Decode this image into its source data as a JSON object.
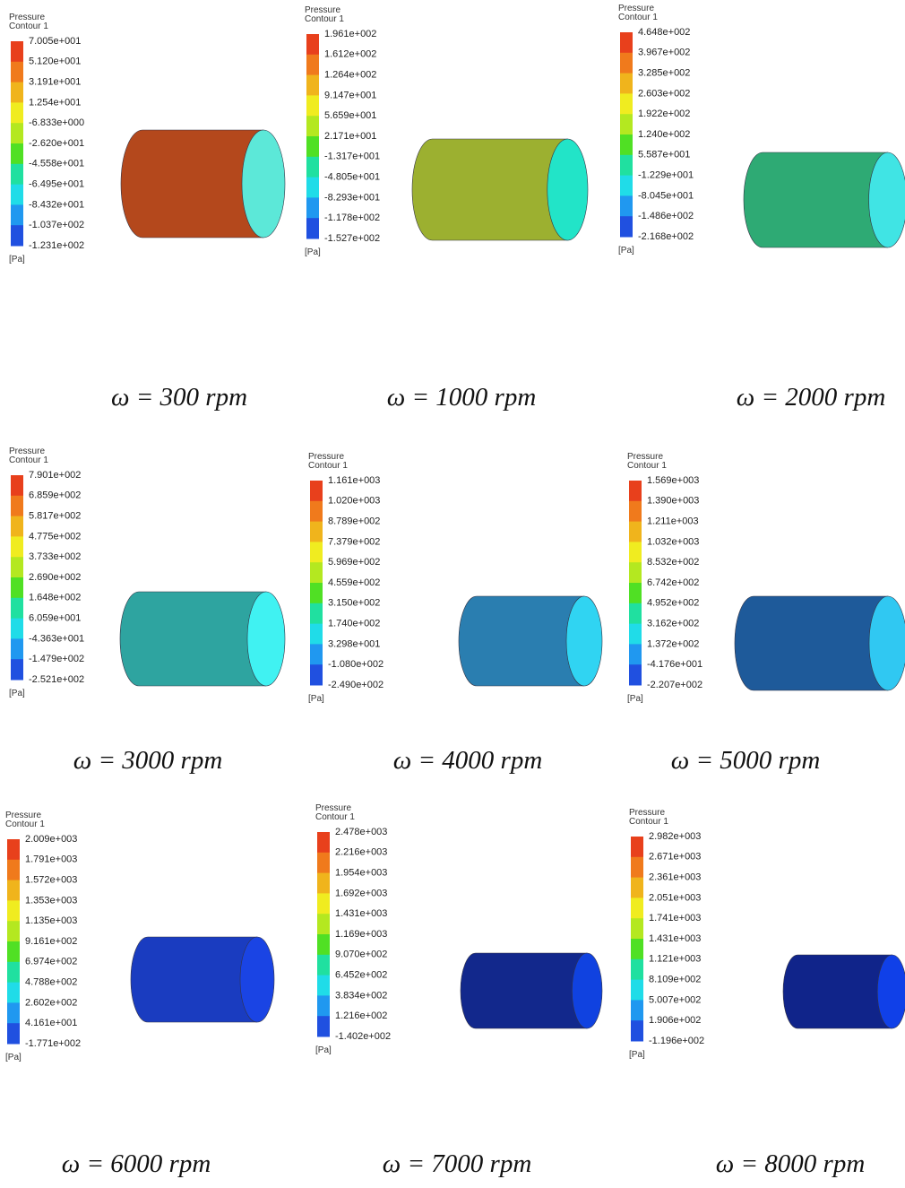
{
  "panels": [
    {
      "legend": {
        "title": "Pressure",
        "subtitle": "Contour 1",
        "levels": [
          "7.005e+001",
          "5.120e+001",
          "3.191e+001",
          "1.254e+001",
          "-6.833e+000",
          "-2.620e+001",
          "-4.558e+001",
          "-6.495e+001",
          "-8.432e+001",
          "-1.037e+002",
          "-1.231e+002"
        ],
        "unit": "[Pa]"
      },
      "caption": "ω = 300 rpm"
    },
    {
      "legend": {
        "title": "Pressure",
        "subtitle": "Contour 1",
        "levels": [
          "1.961e+002",
          "1.612e+002",
          "1.264e+002",
          "9.147e+001",
          "5.659e+001",
          "2.171e+001",
          "-1.317e+001",
          "-4.805e+001",
          "-8.293e+001",
          "-1.178e+002",
          "-1.527e+002"
        ],
        "unit": "[Pa]"
      },
      "caption": "ω = 1000 rpm"
    },
    {
      "legend": {
        "title": "Pressure",
        "subtitle": "Contour 1",
        "levels": [
          "4.648e+002",
          "3.967e+002",
          "3.285e+002",
          "2.603e+002",
          "1.922e+002",
          "1.240e+002",
          "5.587e+001",
          "-1.229e+001",
          "-8.045e+001",
          "-1.486e+002",
          "-2.168e+002"
        ],
        "unit": "[Pa]"
      },
      "caption": "ω = 2000 rpm"
    },
    {
      "legend": {
        "title": "Pressure",
        "subtitle": "Contour 1",
        "levels": [
          "7.901e+002",
          "6.859e+002",
          "5.817e+002",
          "4.775e+002",
          "3.733e+002",
          "2.690e+002",
          "1.648e+002",
          "6.059e+001",
          "-4.363e+001",
          "-1.479e+002",
          "-2.521e+002"
        ],
        "unit": "[Pa]"
      },
      "caption": "ω = 3000 rpm"
    },
    {
      "legend": {
        "title": "Pressure",
        "subtitle": "Contour 1",
        "levels": [
          "1.161e+003",
          "1.020e+003",
          "8.789e+002",
          "7.379e+002",
          "5.969e+002",
          "4.559e+002",
          "3.150e+002",
          "1.740e+002",
          "3.298e+001",
          "-1.080e+002",
          "-2.490e+002"
        ],
        "unit": "[Pa]"
      },
      "caption": "ω = 4000 rpm"
    },
    {
      "legend": {
        "title": "Pressure",
        "subtitle": "Contour 1",
        "levels": [
          "1.569e+003",
          "1.390e+003",
          "1.211e+003",
          "1.032e+003",
          "8.532e+002",
          "6.742e+002",
          "4.952e+002",
          "3.162e+002",
          "1.372e+002",
          "-4.176e+001",
          "-2.207e+002"
        ],
        "unit": "[Pa]"
      },
      "caption": "ω = 5000 rpm"
    },
    {
      "legend": {
        "title": "Pressure",
        "subtitle": "Contour 1",
        "levels": [
          "2.009e+003",
          "1.791e+003",
          "1.572e+003",
          "1.353e+003",
          "1.135e+003",
          "9.161e+002",
          "6.974e+002",
          "4.788e+002",
          "2.602e+002",
          "4.161e+001",
          "-1.771e+002"
        ],
        "unit": "[Pa]"
      },
      "caption": "ω = 6000 rpm"
    },
    {
      "legend": {
        "title": "Pressure",
        "subtitle": "Contour 1",
        "levels": [
          "2.478e+003",
          "2.216e+003",
          "1.954e+003",
          "1.692e+003",
          "1.431e+003",
          "1.169e+003",
          "9.070e+002",
          "6.452e+002",
          "3.834e+002",
          "1.216e+002",
          "-1.402e+002"
        ],
        "unit": "[Pa]"
      },
      "caption": "ω = 7000 rpm"
    },
    {
      "legend": {
        "title": "Pressure",
        "subtitle": "Contour 1",
        "levels": [
          "2.982e+003",
          "2.671e+003",
          "2.361e+003",
          "2.051e+003",
          "1.741e+003",
          "1.431e+003",
          "1.121e+003",
          "8.109e+002",
          "5.007e+002",
          "1.906e+002",
          "-1.196e+002"
        ],
        "unit": "[Pa]"
      },
      "caption": "ω = 8000 rpm"
    }
  ]
}
